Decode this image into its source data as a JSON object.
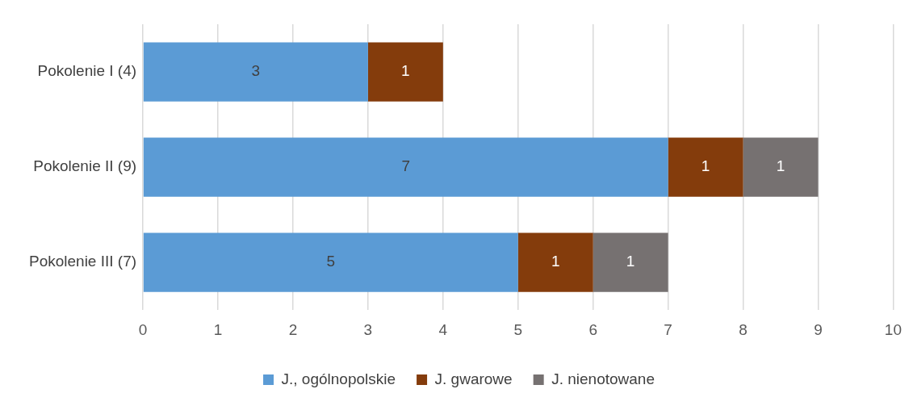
{
  "chart_data": {
    "type": "bar",
    "orientation": "horizontal",
    "stacked": true,
    "categories": [
      "Pokolenie I (4)",
      "Pokolenie II (9)",
      "Pokolenie III (7)"
    ],
    "series": [
      {
        "name": "J., ogólnopolskie",
        "color": "#5b9bd5",
        "values": [
          3,
          7,
          5
        ]
      },
      {
        "name": "J. gwarowe",
        "color": "#843c0c",
        "values": [
          1,
          1,
          1
        ]
      },
      {
        "name": "J. nienotowane",
        "color": "#767171",
        "values": [
          null,
          1,
          1
        ]
      }
    ],
    "xlim": [
      0,
      10
    ],
    "xticks": [
      0,
      1,
      2,
      3,
      4,
      5,
      6,
      7,
      8,
      9,
      10
    ],
    "grid": "x",
    "legend": "bottom",
    "data_labels": true
  }
}
